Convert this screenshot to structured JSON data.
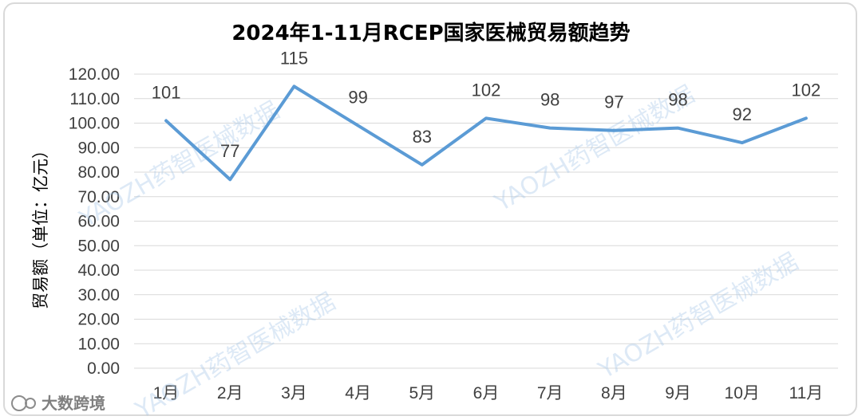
{
  "chart_data": {
    "type": "line",
    "title": "2024年1-11月RCEP国家医械贸易额趋势",
    "ylabel": "贸易额（单位：亿元）",
    "xlabel": "",
    "categories": [
      "1月",
      "2月",
      "3月",
      "4月",
      "5月",
      "6月",
      "7月",
      "8月",
      "9月",
      "10月",
      "11月"
    ],
    "series": [
      {
        "values": [
          101,
          77,
          115,
          99,
          83,
          102,
          98,
          97,
          98,
          92,
          102
        ]
      }
    ],
    "ylim": [
      0,
      120
    ],
    "ytick_step": 10,
    "ytick_labels": [
      "0.00",
      "10.00",
      "20.00",
      "30.00",
      "40.00",
      "50.00",
      "60.00",
      "70.00",
      "80.00",
      "90.00",
      "100.00",
      "110.00",
      "120.00"
    ],
    "grid": true,
    "line_color": "#5b9bd5"
  },
  "watermark": {
    "text": "YAOZH药智医械数据"
  },
  "logo": {
    "text": "大数跨境"
  }
}
